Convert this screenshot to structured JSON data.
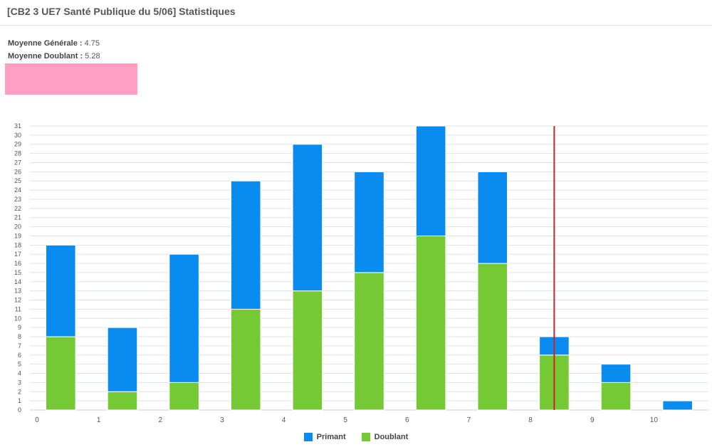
{
  "header": {
    "title": "[CB2 3 UE7 Santé Publique du 5/06] Statistiques"
  },
  "stats": {
    "general_label": "Moyenne Générale :",
    "general_value": "4.75",
    "doublant_label": "Moyenne Doublant :",
    "doublant_value": "5.28",
    "redacted_color": "#ff9fc4"
  },
  "colors": {
    "primant": "#0a8bf0",
    "doublant": "#74c935",
    "marker": "#cc2222",
    "grid": "#dde2ea"
  },
  "chart_data": {
    "type": "bar",
    "stacked": true,
    "x_ticks": [
      "0",
      "1",
      "2",
      "3",
      "4",
      "5",
      "6",
      "7",
      "8",
      "9",
      "10"
    ],
    "bins": [
      {
        "x0": 0,
        "x1": 1,
        "doublant": 8,
        "primant": 10,
        "total": 18
      },
      {
        "x0": 1,
        "x1": 2,
        "doublant": 2,
        "primant": 7,
        "total": 9
      },
      {
        "x0": 2,
        "x1": 3,
        "doublant": 3,
        "primant": 14,
        "total": 17
      },
      {
        "x0": 3,
        "x1": 4,
        "doublant": 11,
        "primant": 14,
        "total": 25
      },
      {
        "x0": 4,
        "x1": 5,
        "doublant": 13,
        "primant": 16,
        "total": 29
      },
      {
        "x0": 5,
        "x1": 6,
        "doublant": 15,
        "primant": 11,
        "total": 26
      },
      {
        "x0": 6,
        "x1": 7,
        "doublant": 19,
        "primant": 12,
        "total": 31
      },
      {
        "x0": 7,
        "x1": 8,
        "doublant": 16,
        "primant": 10,
        "total": 26
      },
      {
        "x0": 8,
        "x1": 9,
        "doublant": 6,
        "primant": 2,
        "total": 8
      },
      {
        "x0": 9,
        "x1": 10,
        "doublant": 3,
        "primant": 2,
        "total": 5
      },
      {
        "x0": 10,
        "x1": 11,
        "doublant": 0,
        "primant": 1,
        "total": 1
      }
    ],
    "series": [
      {
        "name": "Primant",
        "color": "#0a8bf0"
      },
      {
        "name": "Doublant",
        "color": "#74c935"
      }
    ],
    "xlim": [
      0,
      11
    ],
    "ylim": [
      0,
      31
    ],
    "y_ticks": [
      "0",
      "1",
      "2",
      "3",
      "4",
      "5",
      "6",
      "7",
      "8",
      "9",
      "10",
      "11",
      "12",
      "13",
      "14",
      "15",
      "16",
      "17",
      "18",
      "19",
      "20",
      "21",
      "22",
      "23",
      "24",
      "25",
      "26",
      "27",
      "28",
      "29",
      "30",
      "31"
    ],
    "marker_x": 8.5,
    "grid": true,
    "legend_position": "bottom-center"
  }
}
